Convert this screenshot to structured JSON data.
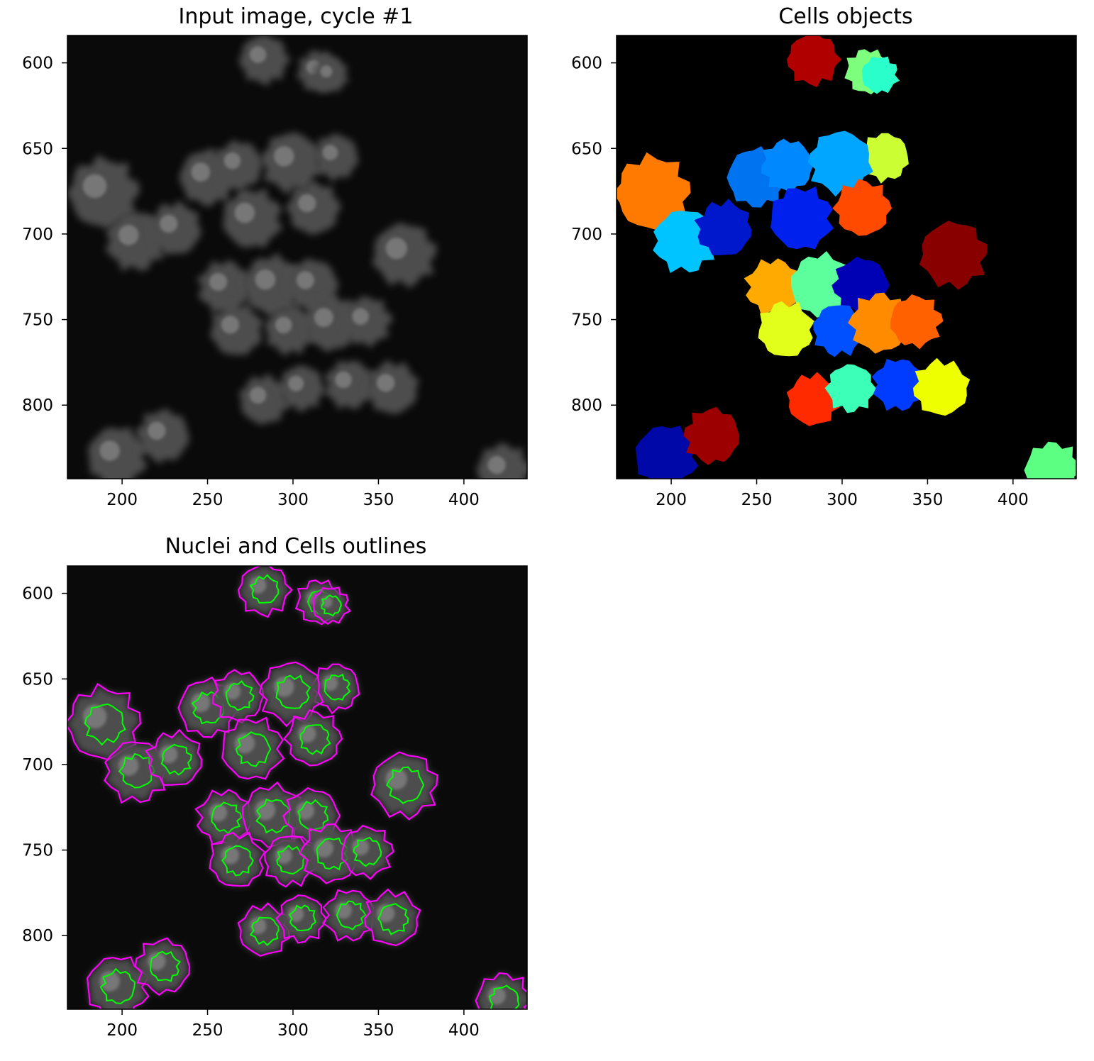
{
  "figure": {
    "background": "#ffffff"
  },
  "chart_data": [
    {
      "type": "image",
      "title": "Input image, cycle #1",
      "colormap": "gray",
      "xlim": [
        168,
        437
      ],
      "ylim": [
        843,
        584
      ],
      "xticks": [
        200,
        250,
        300,
        350,
        400
      ],
      "yticks": [
        600,
        650,
        700,
        750,
        800
      ]
    },
    {
      "type": "image",
      "title": "Cells objects",
      "colormap": "jet",
      "xlim": [
        168,
        437
      ],
      "ylim": [
        843,
        584
      ],
      "xticks": [
        200,
        250,
        300,
        350,
        400
      ],
      "yticks": [
        600,
        650,
        700,
        750,
        800
      ]
    },
    {
      "type": "image",
      "title": "Nuclei and Cells outlines",
      "colormap": "gray",
      "outline_colors": {
        "cells": "#ff00ff",
        "nuclei": "#00ff00"
      },
      "xlim": [
        168,
        437
      ],
      "ylim": [
        843,
        584
      ],
      "xticks": [
        200,
        250,
        300,
        350,
        400
      ],
      "yticks": [
        600,
        650,
        700,
        750,
        800
      ]
    }
  ],
  "cells": [
    {
      "x": 283,
      "y": 598,
      "r": 14,
      "c": "#b00000"
    },
    {
      "x": 315,
      "y": 605,
      "r": 12,
      "c": "#7dff7d"
    },
    {
      "x": 322,
      "y": 607,
      "r": 10,
      "c": "#2affcc"
    },
    {
      "x": 325,
      "y": 655,
      "r": 13,
      "c": "#ccff33"
    },
    {
      "x": 189,
      "y": 676,
      "r": 20,
      "c": "#ff7a00"
    },
    {
      "x": 208,
      "y": 704,
      "r": 17,
      "c": "#00c4ff"
    },
    {
      "x": 231,
      "y": 697,
      "r": 15,
      "c": "#0018cc"
    },
    {
      "x": 250,
      "y": 667,
      "r": 16,
      "c": "#0073f0"
    },
    {
      "x": 268,
      "y": 660,
      "r": 14,
      "c": "#0088ff"
    },
    {
      "x": 276,
      "y": 691,
      "r": 17,
      "c": "#0020ee"
    },
    {
      "x": 299,
      "y": 658,
      "r": 17,
      "c": "#00a6ff"
    },
    {
      "x": 312,
      "y": 685,
      "r": 15,
      "c": "#ff4a00"
    },
    {
      "x": 365,
      "y": 712,
      "r": 18,
      "c": "#890000"
    },
    {
      "x": 260,
      "y": 731,
      "r": 15,
      "c": "#ffaa00"
    },
    {
      "x": 288,
      "y": 730,
      "r": 17,
      "c": "#5cff9c"
    },
    {
      "x": 311,
      "y": 730,
      "r": 15,
      "c": "#0000b4"
    },
    {
      "x": 267,
      "y": 756,
      "r": 15,
      "c": "#e2ff1c"
    },
    {
      "x": 298,
      "y": 756,
      "r": 14,
      "c": "#0050ff"
    },
    {
      "x": 322,
      "y": 752,
      "r": 16,
      "c": "#ff8c00"
    },
    {
      "x": 343,
      "y": 751,
      "r": 14,
      "c": "#ff6000"
    },
    {
      "x": 333,
      "y": 788,
      "r": 14,
      "c": "#003cff"
    },
    {
      "x": 283,
      "y": 797,
      "r": 14,
      "c": "#ff2a00"
    },
    {
      "x": 305,
      "y": 790,
      "r": 13,
      "c": "#3cffb8"
    },
    {
      "x": 358,
      "y": 790,
      "r": 15,
      "c": "#eeff00"
    },
    {
      "x": 197,
      "y": 830,
      "r": 17,
      "c": "#0008a8"
    },
    {
      "x": 224,
      "y": 818,
      "r": 15,
      "c": "#9c0000"
    },
    {
      "x": 423,
      "y": 838,
      "r": 15,
      "c": "#5cff82"
    }
  ]
}
